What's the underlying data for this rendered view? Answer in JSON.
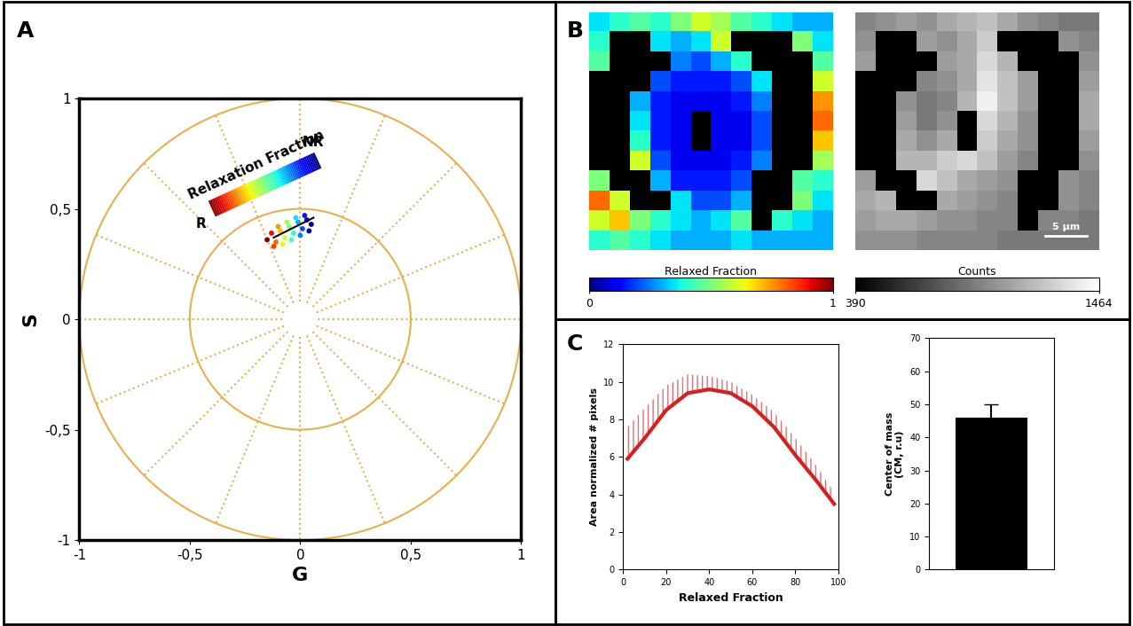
{
  "chart_data": [
    {
      "type": "scatter",
      "panel": "A",
      "xlabel": "G",
      "ylabel": "S",
      "xlim": [
        -1,
        1
      ],
      "ylim": [
        -1,
        1
      ],
      "xticks": [
        {
          "value": -1,
          "label": "-1"
        },
        {
          "value": -0.5,
          "label": "-0,5"
        },
        {
          "value": 0,
          "label": "0"
        },
        {
          "value": 0.5,
          "label": "0,5"
        },
        {
          "value": 1,
          "label": "1"
        }
      ],
      "yticks": [
        {
          "value": -1,
          "label": "-1"
        },
        {
          "value": -0.5,
          "label": "-0,5"
        },
        {
          "value": 0,
          "label": "0"
        },
        {
          "value": 0.5,
          "label": "0,5"
        },
        {
          "value": 1,
          "label": "1"
        }
      ],
      "circle_radii": [
        0.5,
        1
      ],
      "x": [
        -0.15,
        -0.13,
        -0.11,
        -0.09,
        -0.07,
        -0.05,
        -0.03,
        -0.01,
        0.01,
        0.03,
        0.05,
        -0.12,
        -0.08,
        -0.04,
        0.0,
        0.04,
        -0.1,
        -0.06,
        -0.02,
        0.02
      ],
      "y": [
        0.36,
        0.39,
        0.35,
        0.4,
        0.37,
        0.42,
        0.39,
        0.44,
        0.41,
        0.45,
        0.43,
        0.33,
        0.34,
        0.36,
        0.38,
        0.4,
        0.42,
        0.44,
        0.46,
        0.47
      ],
      "fit_line": {
        "x": [
          -0.12,
          0.06
        ],
        "y": [
          0.37,
          0.46
        ]
      },
      "colorbar_label": "Relaxation Fraction",
      "colorbar_ends": [
        "R",
        "NR"
      ]
    },
    {
      "type": "heatmap",
      "panel": "B",
      "colorbar_label": "Relaxed Fraction",
      "clim": [
        0,
        1
      ],
      "cticks": [
        0,
        1
      ],
      "cells": [
        [
          0.35,
          0.4,
          0.45,
          0.4,
          0.5,
          0.6,
          0.55,
          0.45,
          0.4,
          0.35,
          0.3,
          0.3
        ],
        [
          0.4,
          null,
          null,
          0.35,
          0.3,
          0.35,
          0.6,
          null,
          null,
          null,
          0.5,
          0.35
        ],
        [
          0.45,
          null,
          null,
          null,
          0.25,
          0.2,
          0.3,
          0.4,
          null,
          null,
          null,
          0.45
        ],
        [
          null,
          null,
          null,
          0.2,
          0.15,
          0.15,
          0.15,
          0.2,
          0.35,
          null,
          null,
          0.6
        ],
        [
          null,
          null,
          0.3,
          0.15,
          0.1,
          0.1,
          0.1,
          0.15,
          0.25,
          null,
          null,
          0.75
        ],
        [
          null,
          null,
          0.35,
          0.15,
          0.1,
          null,
          0.1,
          0.1,
          0.2,
          null,
          null,
          0.8
        ],
        [
          null,
          null,
          0.4,
          0.15,
          0.1,
          null,
          0.1,
          0.1,
          0.2,
          null,
          null,
          0.7
        ],
        [
          null,
          null,
          0.6,
          0.2,
          0.1,
          0.1,
          0.1,
          0.15,
          0.25,
          null,
          null,
          0.55
        ],
        [
          0.5,
          null,
          null,
          0.3,
          0.15,
          0.15,
          0.15,
          0.2,
          null,
          null,
          0.45,
          0.4
        ],
        [
          0.8,
          0.6,
          null,
          null,
          0.35,
          0.2,
          0.2,
          0.3,
          null,
          null,
          0.5,
          0.35
        ],
        [
          0.6,
          0.7,
          0.5,
          0.4,
          0.35,
          0.3,
          0.35,
          0.45,
          null,
          0.4,
          0.35,
          0.3
        ],
        [
          0.4,
          0.45,
          0.4,
          0.35,
          0.3,
          0.3,
          0.3,
          0.35,
          0.3,
          0.3,
          0.3,
          0.3
        ]
      ]
    },
    {
      "type": "heatmap",
      "colorbar_label": "Counts",
      "clim": [
        390,
        1464
      ],
      "cticks": [
        390,
        1464
      ],
      "scale_bar": "5 µm",
      "cells": [
        [
          950,
          1000,
          1050,
          1000,
          1100,
          1150,
          1200,
          1100,
          1000,
          950,
          900,
          900
        ],
        [
          1000,
          null,
          null,
          1050,
          1000,
          1100,
          1250,
          null,
          null,
          null,
          1000,
          950
        ],
        [
          1050,
          null,
          null,
          null,
          1050,
          1100,
          1300,
          1150,
          null,
          null,
          null,
          1000
        ],
        [
          null,
          null,
          null,
          950,
          1000,
          1100,
          1350,
          1200,
          1050,
          null,
          null,
          1050
        ],
        [
          null,
          null,
          1000,
          900,
          950,
          1150,
          1400,
          1200,
          1050,
          null,
          null,
          1100
        ],
        [
          null,
          null,
          1050,
          900,
          1000,
          null,
          1300,
          1150,
          1000,
          null,
          null,
          1100
        ],
        [
          null,
          null,
          1100,
          1000,
          1100,
          null,
          1250,
          1100,
          1000,
          null,
          null,
          1050
        ],
        [
          null,
          null,
          1150,
          1150,
          1250,
          1300,
          1200,
          1050,
          950,
          null,
          null,
          1000
        ],
        [
          1050,
          null,
          null,
          1300,
          1200,
          1100,
          1050,
          1000,
          null,
          null,
          1000,
          950
        ],
        [
          1100,
          1150,
          null,
          null,
          1100,
          1050,
          1000,
          950,
          null,
          null,
          1000,
          950
        ],
        [
          1050,
          1100,
          1100,
          1050,
          1000,
          1000,
          950,
          950,
          null,
          950,
          950,
          900
        ],
        [
          1000,
          1000,
          1000,
          950,
          950,
          950,
          950,
          900,
          900,
          900,
          900,
          900
        ]
      ]
    },
    {
      "type": "line",
      "panel": "C",
      "xlabel": "Relaxed Fraction",
      "ylabel": "Area normalized # pixels",
      "xlim": [
        0,
        100
      ],
      "ylim": [
        0,
        12
      ],
      "xticks": [
        0,
        20,
        40,
        60,
        80,
        100
      ],
      "yticks": [
        0,
        2,
        4,
        6,
        8,
        10,
        12
      ],
      "x": [
        2,
        10,
        20,
        30,
        40,
        50,
        60,
        70,
        80,
        90,
        98
      ],
      "values": [
        5.9,
        7.0,
        8.5,
        9.4,
        9.6,
        9.4,
        8.7,
        7.6,
        6.1,
        4.7,
        3.5
      ],
      "error": [
        1.7,
        1.6,
        1.3,
        1.0,
        0.7,
        0.6,
        0.6,
        0.8,
        0.9,
        0.8,
        0.6
      ],
      "color": "#d62020"
    },
    {
      "type": "bar",
      "ylabel": "Center of mass\n(CM, r.u)",
      "ylim": [
        0,
        70
      ],
      "yticks": [
        0,
        10,
        20,
        30,
        40,
        50,
        60,
        70
      ],
      "categories": [
        null
      ],
      "values": [
        46
      ],
      "error": [
        4
      ],
      "color": "#000000"
    }
  ]
}
